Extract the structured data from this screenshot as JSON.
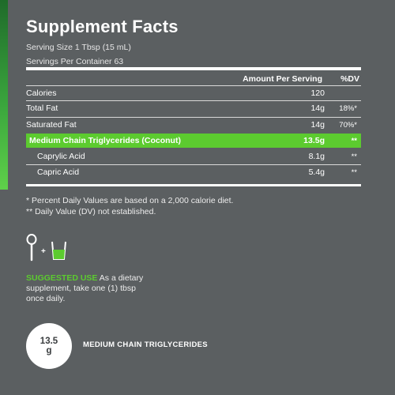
{
  "panel": {
    "title": "Supplement Facts",
    "serving_size": "Serving Size  1 Tbsp (15 mL)",
    "servings_per_container": "Servings Per Container  63",
    "header_amount": "Amount Per Serving",
    "header_dv": "%DV",
    "rows": [
      {
        "name": "Calories",
        "amount": "120",
        "dv": ""
      },
      {
        "name": "Total Fat",
        "amount": "14g",
        "dv": "18%*"
      },
      {
        "name": "Saturated Fat",
        "amount": "14g",
        "dv": "70%*"
      },
      {
        "name": "Medium Chain Triglycerides (Coconut)",
        "amount": "13.5g",
        "dv": "**"
      },
      {
        "name": "Caprylic Acid",
        "amount": "8.1g",
        "dv": "**"
      },
      {
        "name": "Capric Acid",
        "amount": "5.4g",
        "dv": "**"
      }
    ],
    "footnote_1": "* Percent Daily Values are based on a 2,000 calorie diet.",
    "footnote_2": "** Daily Value (DV) not established."
  },
  "icons": {
    "spoon": "spoon-icon",
    "plus": "+",
    "glass": "glass-icon"
  },
  "suggested_use": {
    "label": "SUGGESTED USE",
    "text": " As a dietary supplement, take one (1) tbsp once daily."
  },
  "badge": {
    "value": "13.5",
    "unit": "g",
    "label": "MEDIUM CHAIN TRIGLYCERIDES"
  },
  "colors": {
    "background": "#5b5f61",
    "accent": "#5ccb2f",
    "text": "#ffffff"
  }
}
